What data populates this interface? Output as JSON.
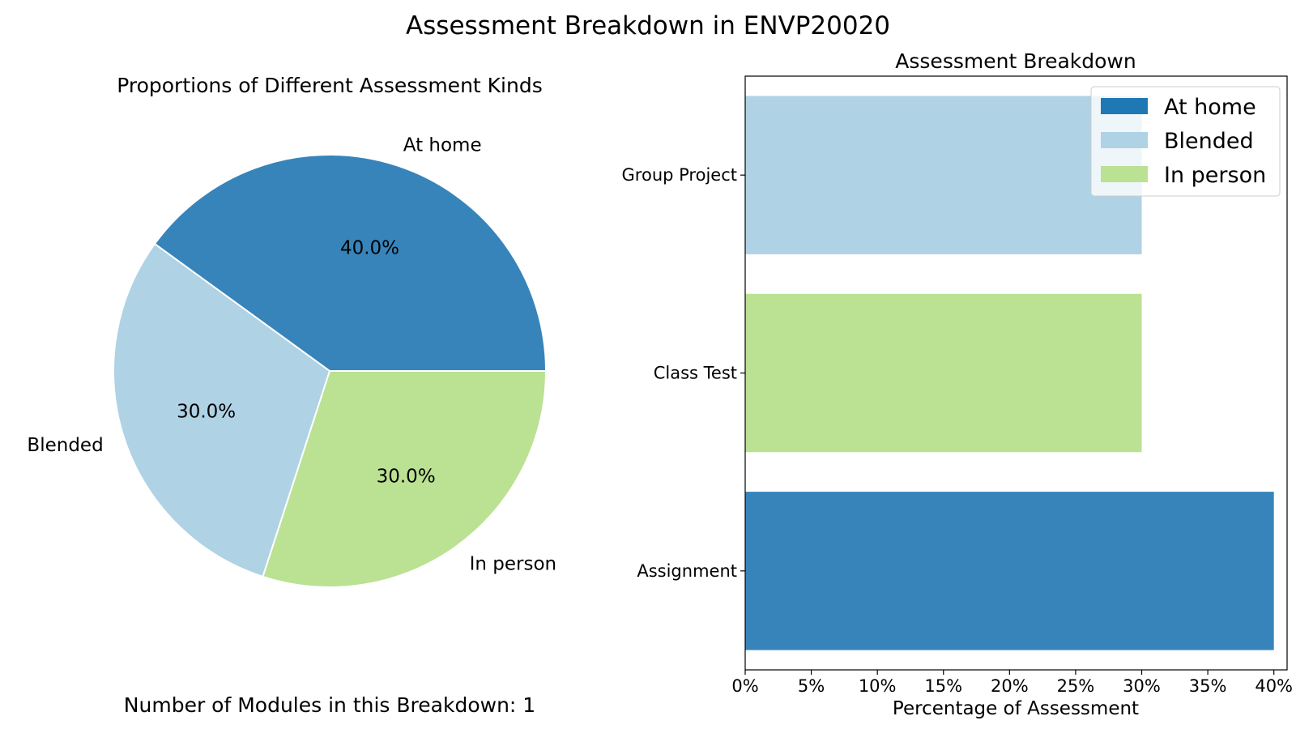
{
  "figure": {
    "title": "Assessment Breakdown in ENVP20020",
    "footnote": "Number of Modules in this Breakdown: 1"
  },
  "colors": {
    "At home": "#3784bb",
    "Blended": "#afd2e5",
    "In person": "#bbe193",
    "legend_at_home_swatch": "#1f78b4"
  },
  "chart_data": [
    {
      "type": "pie",
      "title": "Proportions of Different Assessment Kinds",
      "labels": [
        "At home",
        "Blended",
        "In person"
      ],
      "values": [
        40.0,
        30.0,
        30.0
      ],
      "pct_labels": [
        "40.0%",
        "30.0%",
        "30.0%"
      ],
      "start_angle": 0,
      "direction": "counterclockwise"
    },
    {
      "type": "bar",
      "orientation": "horizontal",
      "title": "Assessment Breakdown",
      "xlabel": "Percentage of Assessment",
      "ylabel": "",
      "categories": [
        "Assignment",
        "Class Test",
        "Group Project"
      ],
      "values": [
        40,
        30,
        30
      ],
      "bar_kind": [
        "At home",
        "In person",
        "Blended"
      ],
      "xlim": [
        0,
        41
      ],
      "xticks": [
        0,
        5,
        10,
        15,
        20,
        25,
        30,
        35,
        40
      ],
      "xtick_labels": [
        "0%",
        "5%",
        "10%",
        "15%",
        "20%",
        "25%",
        "30%",
        "35%",
        "40%"
      ],
      "legend": {
        "placement": "upper-right",
        "entries": [
          "At home",
          "Blended",
          "In person"
        ]
      },
      "grid": false
    }
  ]
}
